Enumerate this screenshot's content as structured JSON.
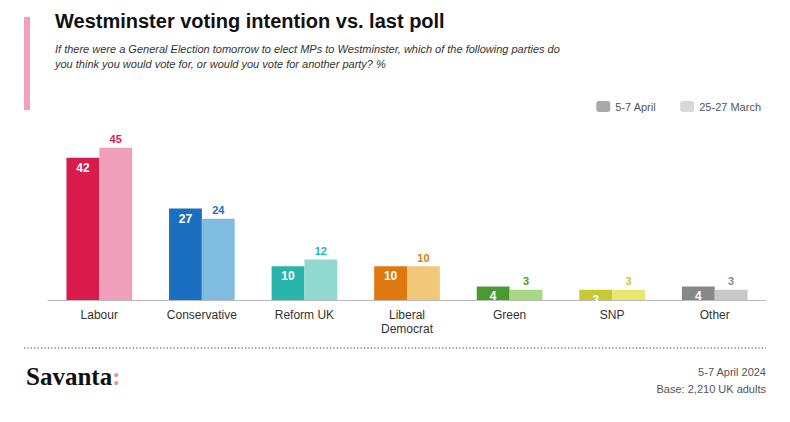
{
  "chart_data": {
    "type": "bar",
    "title": "Westminster voting intention vs. last poll",
    "subtitle": "If there were a General Election tomorrow to elect MPs to Westminster, which of the following parties do\nyou think you would vote for, or would you vote for another party? %",
    "categories": [
      "Labour",
      "Conservative",
      "Reform UK",
      "Liberal\nDemocrat",
      "Green",
      "SNP",
      "Other"
    ],
    "series": [
      {
        "name": "5-7 April",
        "color": "#aaaaaa",
        "colors": [
          "#d81b4a",
          "#1b6fc0",
          "#2ab5aa",
          "#e07810",
          "#4a9b2f",
          "#c8c830",
          "#888888"
        ],
        "values": [
          42,
          27,
          10,
          10,
          4,
          3,
          4
        ]
      },
      {
        "name": "25-27 March",
        "color": "#d8d8d8",
        "colors": [
          "#f0a0bb",
          "#80bce0",
          "#90d8d0",
          "#f0c878",
          "#a8d880",
          "#e8e870",
          "#c8c8c8"
        ],
        "values": [
          45,
          24,
          12,
          10,
          3,
          3,
          3
        ]
      }
    ],
    "ylim": [
      0,
      52
    ],
    "grid": false,
    "legend": "upper right",
    "data_labels": true,
    "tick_labels": "x",
    "annotations": [
      "Savanta",
      ":",
      "5-7 April 2024",
      "Base: 2,210 UK adults"
    ]
  }
}
